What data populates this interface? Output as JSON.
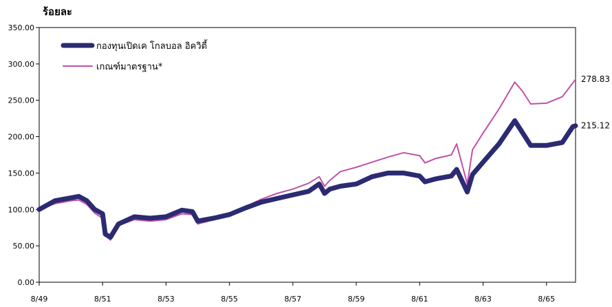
{
  "chart_data": {
    "type": "line",
    "ylabel": "ร้อยละ",
    "ylim": [
      0,
      350
    ],
    "yticks": [
      "0.00",
      "50.00",
      "100.00",
      "150.00",
      "200.00",
      "250.00",
      "300.00",
      "350.00"
    ],
    "xticks": [
      "8/49",
      "8/51",
      "8/53",
      "8/55",
      "8/57",
      "8/59",
      "8/61",
      "8/63",
      "8/65"
    ],
    "grid": false,
    "legend_position": "top-left",
    "series": [
      {
        "name": "กองทุนเปิดเค โกลบอล อิควิตี้",
        "color": "#2b2a72",
        "end_label": "215.12",
        "x": [
          "8/49",
          "2/50",
          "8/50",
          "11/50",
          "2/51",
          "5/51",
          "8/51",
          "9/51",
          "11/51",
          "2/52",
          "8/52",
          "2/53",
          "8/53",
          "2/54",
          "6/54",
          "8/54",
          "2/55",
          "8/55",
          "2/56",
          "8/56",
          "2/57",
          "8/57",
          "2/58",
          "6/58",
          "8/58",
          "10/58",
          "2/59",
          "8/59",
          "2/60",
          "8/60",
          "2/61",
          "8/61",
          "10/61",
          "2/62",
          "8/62",
          "10/62",
          "2/63",
          "4/63",
          "8/63",
          "2/64",
          "8/64",
          "11/64",
          "2/65",
          "8/65",
          "2/66",
          "6/66",
          "7/66"
        ],
        "values": [
          100,
          112,
          116,
          118,
          112,
          100,
          94,
          66,
          62,
          80,
          90,
          88,
          90,
          99,
          97,
          84,
          88,
          93,
          102,
          110,
          115,
          120,
          125,
          135,
          122,
          128,
          132,
          135,
          145,
          150,
          150,
          146,
          138,
          142,
          146,
          155,
          124,
          148,
          165,
          190,
          222,
          205,
          188,
          188,
          192,
          214,
          215
        ]
      },
      {
        "name": "เกณฑ์มาตรฐาน*",
        "color": "#c050a8",
        "end_label": "278.83",
        "x": [
          "8/49",
          "2/50",
          "8/50",
          "11/50",
          "2/51",
          "5/51",
          "8/51",
          "9/51",
          "11/51",
          "2/52",
          "8/52",
          "2/53",
          "8/53",
          "2/54",
          "6/54",
          "8/54",
          "2/55",
          "8/55",
          "2/56",
          "8/56",
          "2/57",
          "8/57",
          "2/58",
          "6/58",
          "8/58",
          "10/58",
          "2/59",
          "8/59",
          "2/60",
          "8/60",
          "2/61",
          "8/61",
          "10/61",
          "2/62",
          "8/62",
          "10/62",
          "2/63",
          "4/63",
          "8/63",
          "2/64",
          "8/64",
          "11/64",
          "2/65",
          "8/65",
          "2/66",
          "6/66",
          "7/66"
        ],
        "values": [
          100,
          108,
          112,
          113,
          107,
          95,
          88,
          64,
          58,
          78,
          86,
          84,
          86,
          94,
          93,
          80,
          86,
          92,
          104,
          114,
          122,
          128,
          136,
          145,
          132,
          140,
          152,
          158,
          165,
          172,
          178,
          174,
          164,
          170,
          175,
          190,
          135,
          182,
          205,
          238,
          275,
          262,
          245,
          246,
          255,
          274,
          278.83
        ]
      }
    ]
  }
}
